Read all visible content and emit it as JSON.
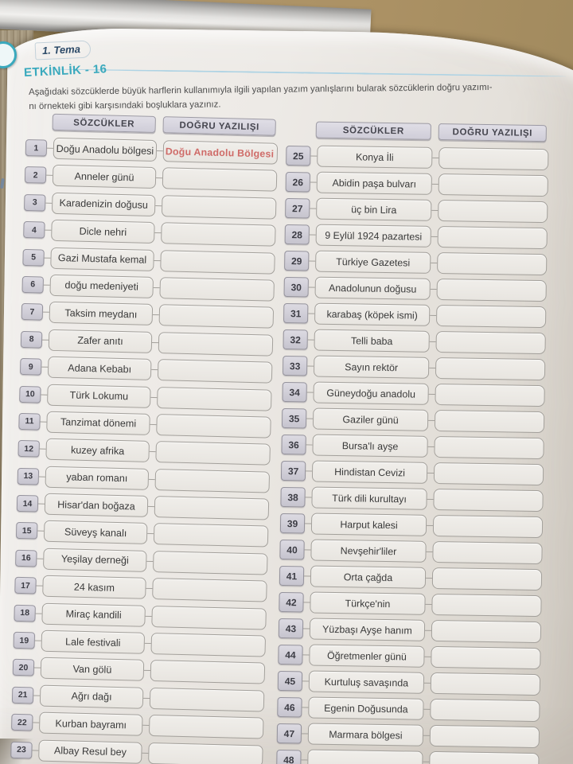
{
  "page": {
    "tema_label": "1. Tema",
    "activity_title": "ETKİNLİK - 16",
    "instructions_line1": "Aşağıdaki sözcüklerde büyük harflerin kullanımıyla ilgili yapılan yazım yanlışlarını bularak sözcüklerin doğru yazımı-",
    "instructions_line2": "nı örnekteki gibi karşısındaki boşluklara yazınız."
  },
  "table": {
    "left": {
      "headers": {
        "words": "SÖZCÜKLER",
        "correct": "DOĞRU YAZILIŞI"
      },
      "rows": [
        {
          "num": "1",
          "word": "Doğu Anadolu bölgesi",
          "answer": "Doğu Anadolu Bölgesi"
        },
        {
          "num": "2",
          "word": "Anneler günü",
          "answer": ""
        },
        {
          "num": "3",
          "word": "Karadenizin doğusu",
          "answer": ""
        },
        {
          "num": "4",
          "word": "Dicle nehri",
          "answer": ""
        },
        {
          "num": "5",
          "word": "Gazi Mustafa kemal",
          "answer": ""
        },
        {
          "num": "6",
          "word": "doğu medeniyeti",
          "answer": ""
        },
        {
          "num": "7",
          "word": "Taksim meydanı",
          "answer": ""
        },
        {
          "num": "8",
          "word": "Zafer anıtı",
          "answer": ""
        },
        {
          "num": "9",
          "word": "Adana Kebabı",
          "answer": ""
        },
        {
          "num": "10",
          "word": "Türk Lokumu",
          "answer": ""
        },
        {
          "num": "11",
          "word": "Tanzimat dönemi",
          "answer": ""
        },
        {
          "num": "12",
          "word": "kuzey afrika",
          "answer": ""
        },
        {
          "num": "13",
          "word": "yaban romanı",
          "answer": ""
        },
        {
          "num": "14",
          "word": "Hisar'dan boğaza",
          "answer": ""
        },
        {
          "num": "15",
          "word": "Süveyş kanalı",
          "answer": ""
        },
        {
          "num": "16",
          "word": "Yeşilay derneği",
          "answer": ""
        },
        {
          "num": "17",
          "word": "24 kasım",
          "answer": ""
        },
        {
          "num": "18",
          "word": "Miraç kandili",
          "answer": ""
        },
        {
          "num": "19",
          "word": "Lale festivali",
          "answer": ""
        },
        {
          "num": "20",
          "word": "Van gölü",
          "answer": ""
        },
        {
          "num": "21",
          "word": "Ağrı dağı",
          "answer": ""
        },
        {
          "num": "22",
          "word": "Kurban bayramı",
          "answer": ""
        },
        {
          "num": "23",
          "word": "Albay Resul bey",
          "answer": ""
        }
      ]
    },
    "right": {
      "headers": {
        "words": "SÖZCÜKLER",
        "correct": "DOĞRU YAZILIŞI"
      },
      "rows": [
        {
          "num": "25",
          "word": "Konya İli",
          "answer": ""
        },
        {
          "num": "26",
          "word": "Abidin paşa bulvarı",
          "answer": ""
        },
        {
          "num": "27",
          "word": "üç bin Lira",
          "answer": ""
        },
        {
          "num": "28",
          "word": "9 Eylül 1924 pazartesi",
          "answer": ""
        },
        {
          "num": "29",
          "word": "Türkiye Gazetesi",
          "answer": ""
        },
        {
          "num": "30",
          "word": "Anadolunun doğusu",
          "answer": ""
        },
        {
          "num": "31",
          "word": "karabaş (köpek ismi)",
          "answer": ""
        },
        {
          "num": "32",
          "word": "Telli baba",
          "answer": ""
        },
        {
          "num": "33",
          "word": "Sayın rektör",
          "answer": ""
        },
        {
          "num": "34",
          "word": "Güneydoğu anadolu",
          "answer": ""
        },
        {
          "num": "35",
          "word": "Gaziler günü",
          "answer": ""
        },
        {
          "num": "36",
          "word": "Bursa'lı ayşe",
          "answer": ""
        },
        {
          "num": "37",
          "word": "Hindistan Cevizi",
          "answer": ""
        },
        {
          "num": "38",
          "word": "Türk dili kurultayı",
          "answer": ""
        },
        {
          "num": "39",
          "word": "Harput kalesi",
          "answer": ""
        },
        {
          "num": "40",
          "word": "Nevşehir'liler",
          "answer": ""
        },
        {
          "num": "41",
          "word": "Orta çağda",
          "answer": ""
        },
        {
          "num": "42",
          "word": "Türkçe'nin",
          "answer": ""
        },
        {
          "num": "43",
          "word": "Yüzbaşı Ayşe hanım",
          "answer": ""
        },
        {
          "num": "44",
          "word": "Öğretmenler günü",
          "answer": ""
        },
        {
          "num": "45",
          "word": "Kurtuluş savaşında",
          "answer": ""
        },
        {
          "num": "46",
          "word": "Egenin Doğusunda",
          "answer": ""
        },
        {
          "num": "47",
          "word": "Marmara bölgesi",
          "answer": ""
        },
        {
          "num": "48",
          "word": "",
          "answer": ""
        }
      ]
    }
  },
  "colors": {
    "accent_teal": "#3aa9bd",
    "navy": "#2c4a68",
    "rule_blue": "#aed3e4",
    "answer_red": "#cf6b68",
    "box_border": "#a3a09b",
    "header_fill": "#e0dee6"
  }
}
